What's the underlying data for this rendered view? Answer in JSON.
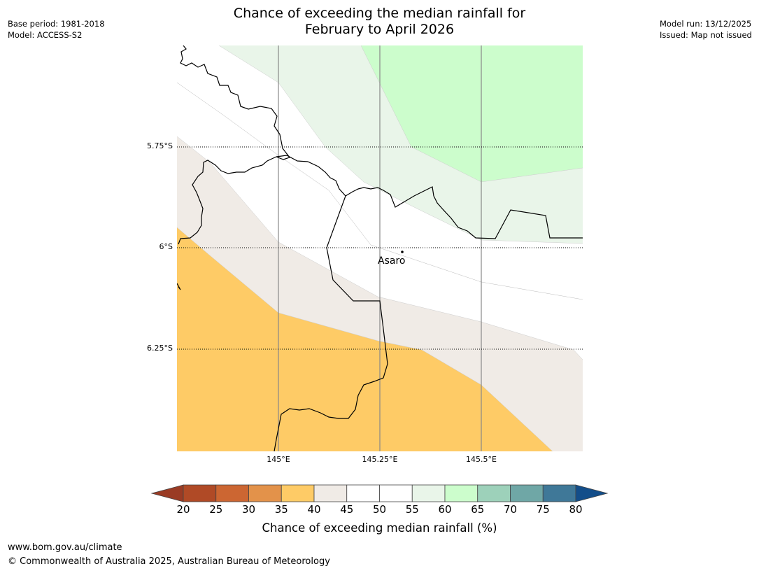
{
  "header": {
    "title_line1": "Chance of exceeding the median rainfall for",
    "title_line2": "February to April 2026",
    "base_period": "Base period: 1981-2018",
    "model": "Model: ACCESS-S2",
    "model_run": "Model run: 13/12/2025",
    "issued": "Issued: Map not issued"
  },
  "map": {
    "lat_labels": [
      "5.75°S",
      "6°S",
      "6.25°S"
    ],
    "lon_labels": [
      "145°E",
      "145.25°E",
      "145.5°E"
    ],
    "place": "Asaro",
    "category_colors": {
      "30-35": "#e3924a",
      "35-40": "#fecb66",
      "40-45": "#f0ebe6",
      "45-50": "#ffffff",
      "50-55": "#ffffff",
      "55-60": "#e9f5e9",
      "60-65": "#ccfdcc"
    }
  },
  "colorbar": {
    "title": "Chance of exceeding median rainfall (%)",
    "ticks": [
      "20",
      "25",
      "30",
      "35",
      "40",
      "45",
      "50",
      "55",
      "60",
      "65",
      "70",
      "75",
      "80"
    ],
    "under_color": "#9a3b24",
    "over_color": "#134e8a",
    "colors": [
      "#b04a26",
      "#cc6632",
      "#e3924a",
      "#fecb66",
      "#f0ebe6",
      "#ffffff",
      "#ffffff",
      "#e9f5e9",
      "#ccfdcc",
      "#9dd1ba",
      "#6fa7a6",
      "#3f7898"
    ]
  },
  "footer": {
    "url": "www.bom.gov.au/climate",
    "copyright": "© Commonwealth of Australia 2025, Australian Bureau of Meteorology"
  }
}
